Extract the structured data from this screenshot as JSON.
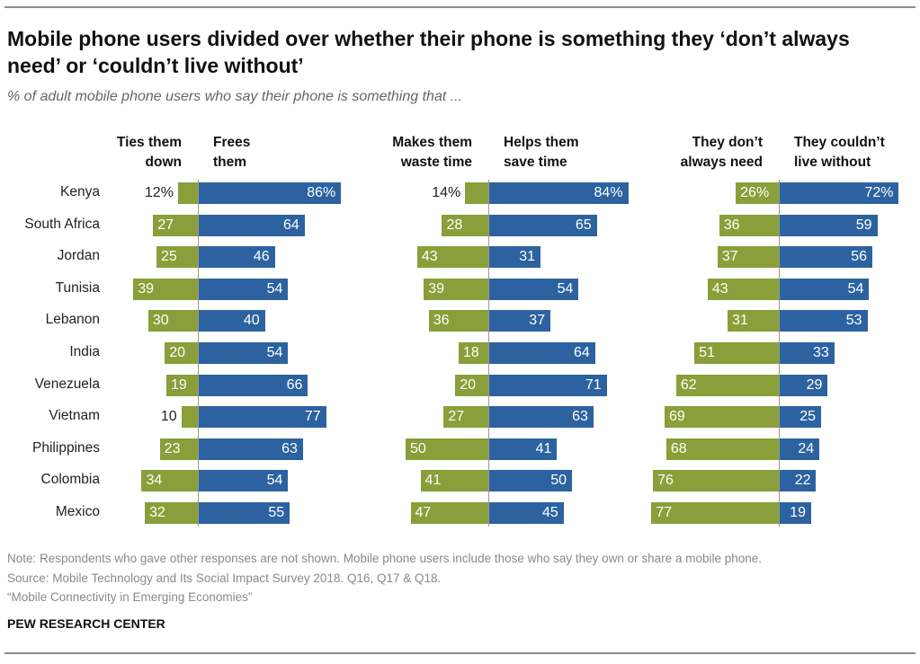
{
  "title": "Mobile phone users divided over whether their phone is something they ‘don’t always need’ or ‘couldn’t live without’",
  "subtitle": "% of adult mobile phone users who say their phone is something that ...",
  "notes": [
    "Note: Respondents who gave other responses are not shown. Mobile phone users include those who say they own or share a mobile phone.",
    "Source: Mobile Technology and Its Social Impact Survey 2018. Q16, Q17 & Q18.",
    "“Mobile Connectivity in Emerging Economies”"
  ],
  "brand": "PEW RESEARCH CENTER",
  "colors": {
    "negative": "#8a9e3a",
    "positive": "#2d62a0"
  },
  "chart_data": {
    "type": "bar",
    "orientation": "horizontal diverging",
    "categories": [
      "Kenya",
      "South Africa",
      "Jordan",
      "Tunisia",
      "Lebanon",
      "India",
      "Venezuela",
      "Vietnam",
      "Philippines",
      "Colombia",
      "Mexico"
    ],
    "panels": [
      {
        "series": [
          {
            "name": "Ties them down",
            "values": [
              12,
              27,
              25,
              39,
              30,
              20,
              19,
              10,
              23,
              34,
              32
            ]
          },
          {
            "name": "Frees them",
            "values": [
              86,
              64,
              46,
              54,
              40,
              54,
              66,
              77,
              63,
              54,
              55
            ]
          }
        ]
      },
      {
        "series": [
          {
            "name": "Makes them waste time",
            "values": [
              14,
              28,
              43,
              39,
              36,
              18,
              20,
              27,
              50,
              41,
              47
            ]
          },
          {
            "name": "Helps them save time",
            "values": [
              84,
              65,
              31,
              54,
              37,
              64,
              71,
              63,
              41,
              50,
              45
            ]
          }
        ]
      },
      {
        "series": [
          {
            "name": "They don’t always need",
            "values": [
              26,
              36,
              37,
              43,
              31,
              51,
              62,
              69,
              68,
              76,
              77
            ]
          },
          {
            "name": "They couldn’t live without",
            "values": [
              72,
              59,
              56,
              54,
              53,
              33,
              29,
              25,
              24,
              22,
              19
            ]
          }
        ]
      }
    ],
    "headers": [
      [
        "Ties them\ndown",
        "Frees\nthem"
      ],
      [
        "Makes them\nwaste time",
        "Helps them\nsave time"
      ],
      [
        "They don’t\nalways need",
        "They couldn’t\nlive without"
      ]
    ],
    "unit_first_row": "%"
  }
}
